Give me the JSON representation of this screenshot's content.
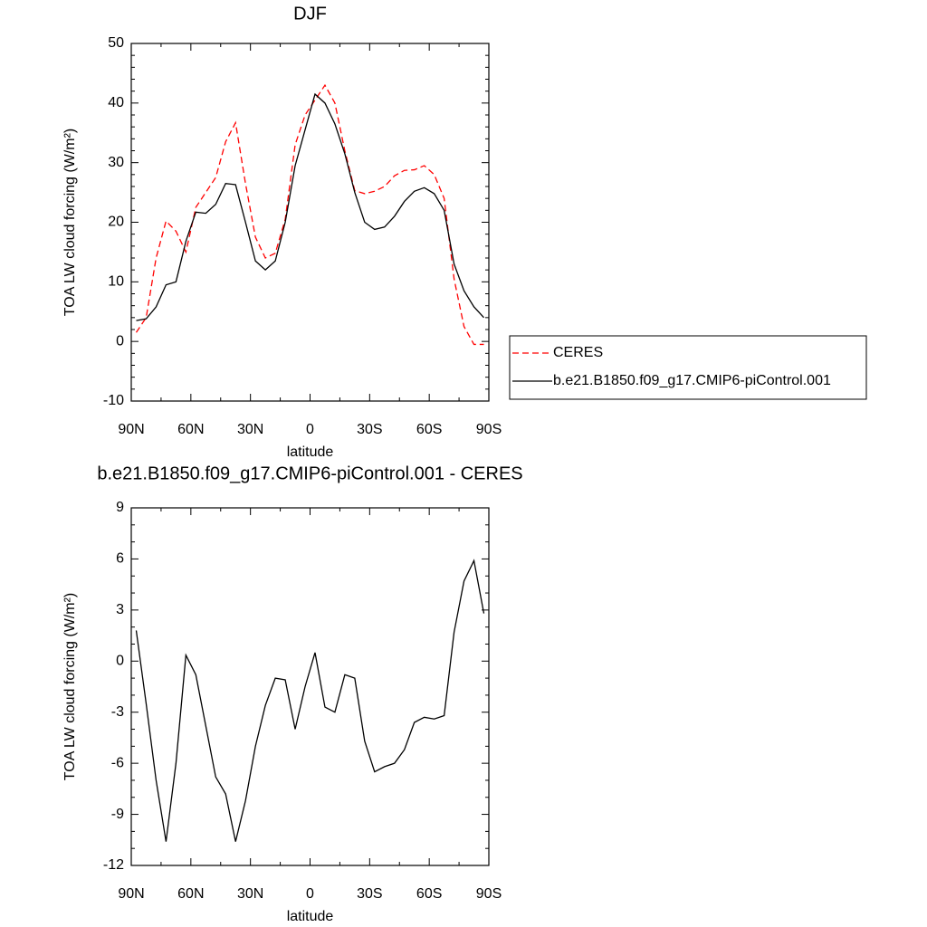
{
  "chart_data": [
    {
      "type": "line",
      "title": "DJF",
      "xlabel": "latitude",
      "ylabel": "TOA LW cloud forcing (W/m²)",
      "x": [
        87.5,
        82.5,
        77.5,
        72.5,
        67.5,
        62.5,
        57.5,
        52.5,
        47.5,
        42.5,
        37.5,
        32.5,
        27.5,
        22.5,
        17.5,
        12.5,
        7.5,
        2.5,
        -2.5,
        -7.5,
        -12.5,
        -17.5,
        -22.5,
        -27.5,
        -32.5,
        -37.5,
        -42.5,
        -47.5,
        -52.5,
        -57.5,
        -62.5,
        -67.5,
        -72.5,
        -77.5,
        -82.5,
        -87.5
      ],
      "series": [
        {
          "name": "CERES",
          "color": "#ff0000",
          "line_style": "dashed",
          "values": [
            1.5,
            4.0,
            14.0,
            20.2,
            18.5,
            15.0,
            22.5,
            25.0,
            27.5,
            33.5,
            36.7,
            26.5,
            17.5,
            14.0,
            14.8,
            20.5,
            33.0,
            38.0,
            40.5,
            43.0,
            40.0,
            32.0,
            25.3,
            24.8,
            25.2,
            26.0,
            27.8,
            28.7,
            28.8,
            29.5,
            28.0,
            24.0,
            10.5,
            2.5,
            -0.5,
            -0.5
          ]
        },
        {
          "name": "b.e21.B1850.f09_g17.CMIP6-piControl.001",
          "color": "#000000",
          "line_style": "solid",
          "values": [
            3.5,
            3.8,
            5.8,
            9.5,
            10.0,
            16.8,
            21.7,
            21.5,
            23.0,
            26.5,
            26.3,
            20.0,
            13.5,
            12.0,
            13.5,
            20.0,
            29.5,
            35.5,
            41.5,
            40.0,
            36.5,
            31.5,
            25.0,
            20.0,
            18.8,
            19.2,
            21.0,
            23.5,
            25.2,
            25.8,
            24.8,
            22.0,
            13.0,
            8.5,
            5.8,
            4.0
          ]
        }
      ],
      "xlim": [
        90,
        -90
      ],
      "xticks": [
        {
          "value": 90,
          "label": "90N"
        },
        {
          "value": 60,
          "label": "60N"
        },
        {
          "value": 30,
          "label": "30N"
        },
        0,
        {
          "value": -30,
          "label": "30S"
        },
        {
          "value": -60,
          "label": "60S"
        },
        {
          "value": -90,
          "label": "90S"
        }
      ],
      "ylim": [
        -10,
        50
      ],
      "yticks": [
        -10,
        0,
        10,
        20,
        30,
        40,
        50
      ],
      "legend": "right"
    },
    {
      "type": "line",
      "title": "b.e21.B1850.f09_g17.CMIP6-piControl.001 - CERES",
      "xlabel": "latitude",
      "ylabel": "TOA LW cloud forcing (W/m²)",
      "x": [
        87.5,
        82.5,
        77.5,
        72.5,
        67.5,
        62.5,
        57.5,
        52.5,
        47.5,
        42.5,
        37.5,
        32.5,
        27.5,
        22.5,
        17.5,
        12.5,
        7.5,
        2.5,
        -2.5,
        -7.5,
        -12.5,
        -17.5,
        -22.5,
        -27.5,
        -32.5,
        -37.5,
        -42.5,
        -47.5,
        -52.5,
        -57.5,
        -62.5,
        -67.5,
        -72.5,
        -77.5,
        -82.5,
        -87.5
      ],
      "series": [
        {
          "color": "#000000",
          "line_style": "solid",
          "values": [
            1.8,
            -2.5,
            -7.0,
            -10.6,
            -6.0,
            0.35,
            -0.8,
            -3.8,
            -6.8,
            -7.8,
            -10.6,
            -8.2,
            -5.0,
            -2.6,
            -1.0,
            -1.1,
            -4.0,
            -1.5,
            0.5,
            -2.7,
            -3.0,
            -0.8,
            -1.0,
            -4.7,
            -6.5,
            -6.2,
            -6.0,
            -5.2,
            -3.6,
            -3.3,
            -3.4,
            -3.2,
            1.7,
            4.7,
            5.9,
            2.8
          ]
        }
      ],
      "xlim": [
        90,
        -90
      ],
      "xticks": [
        {
          "value": 90,
          "label": "90N"
        },
        {
          "value": 60,
          "label": "60N"
        },
        {
          "value": 30,
          "label": "30N"
        },
        0,
        {
          "value": -30,
          "label": "30S"
        },
        {
          "value": -60,
          "label": "60S"
        },
        {
          "value": -90,
          "label": "90S"
        }
      ],
      "ylim": [
        -12,
        9
      ],
      "yticks": [
        -12,
        -9,
        -6,
        -3,
        0,
        3,
        6,
        9
      ]
    }
  ]
}
